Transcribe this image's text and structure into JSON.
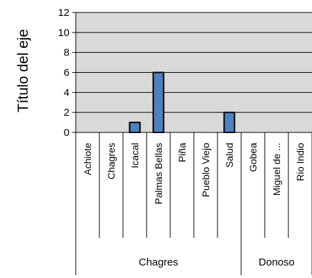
{
  "chart_data": {
    "type": "bar",
    "ylabel": "Título del eje",
    "xlabel": "",
    "title": "",
    "ylim": [
      0,
      12
    ],
    "y_ticks": [
      0,
      2,
      4,
      6,
      8,
      10,
      12
    ],
    "grid": true,
    "legend": "none",
    "categories": [
      "Achiote",
      "Chagres",
      "Icacal",
      "Palmas Bellas",
      "Piña",
      "Pueblo Viejo",
      "Salud",
      "Gobea",
      "Miguel de ...",
      "Rio Indio"
    ],
    "groups": [
      {
        "label": "Chagres",
        "span": 7
      },
      {
        "label": "Donoso",
        "span": 3
      }
    ],
    "values": [
      0,
      0,
      1,
      6,
      0,
      0,
      2,
      0,
      0,
      0
    ],
    "colors": {
      "bar_fill": "#4F81BD",
      "bar_stroke": "#000000",
      "plot_background": "#D9D9D9",
      "grid": "#000000"
    }
  }
}
